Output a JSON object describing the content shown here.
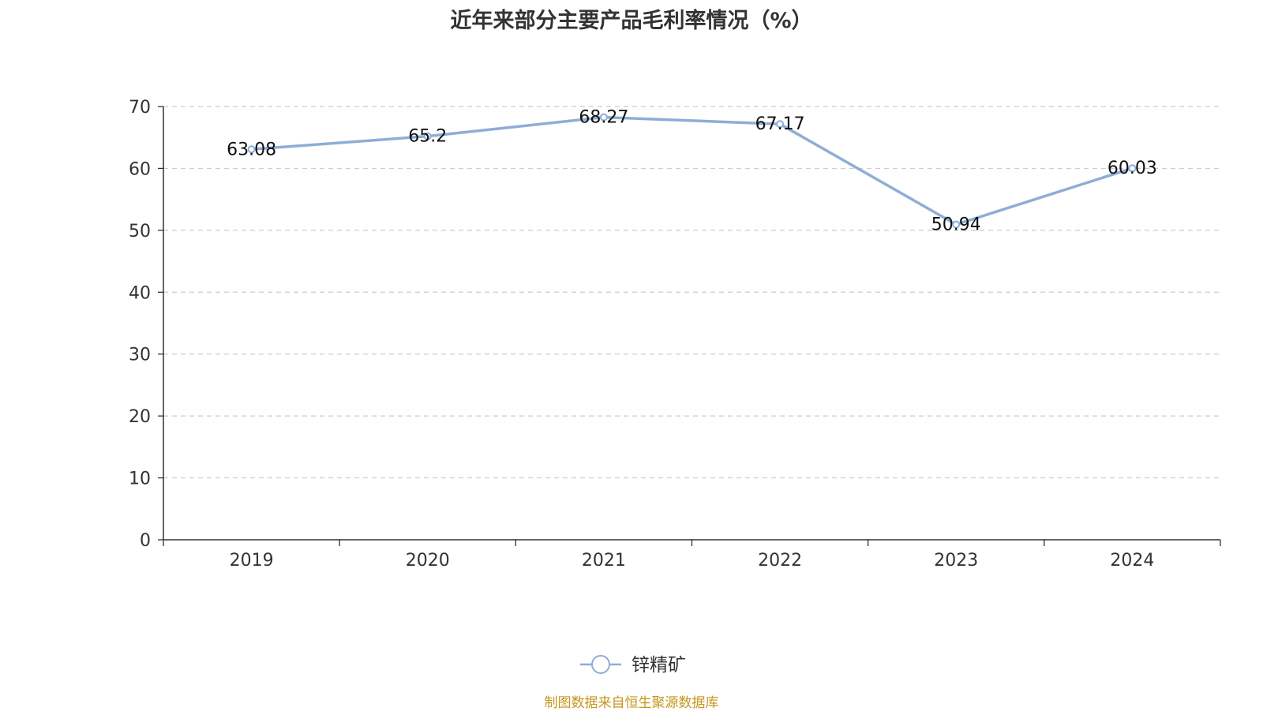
{
  "colors": {
    "series": "#8EADD7",
    "axis": "#333333",
    "grid": "#CCCCCC",
    "text": "#333333",
    "source": "#C5961E"
  },
  "footer": {
    "source_text": "制图数据来自恒生聚源数据库"
  },
  "chart_data": {
    "type": "line",
    "title": "近年来部分主要产品毛利率情况（%）",
    "categories": [
      "2019",
      "2020",
      "2021",
      "2022",
      "2023",
      "2024"
    ],
    "series": [
      {
        "name": "锌精矿",
        "values": [
          63.08,
          65.2,
          68.27,
          67.17,
          50.94,
          60.03
        ],
        "labels": [
          "63.08",
          "65.2",
          "68.27",
          "67.17",
          "50.94",
          "60.03"
        ]
      }
    ],
    "ylim": [
      0,
      70
    ],
    "yticks": [
      0,
      10,
      20,
      30,
      40,
      50,
      60,
      70
    ],
    "grid": true,
    "grid_style": "dashed",
    "legend_position": "bottom-center",
    "marker": "hollow-circle"
  }
}
